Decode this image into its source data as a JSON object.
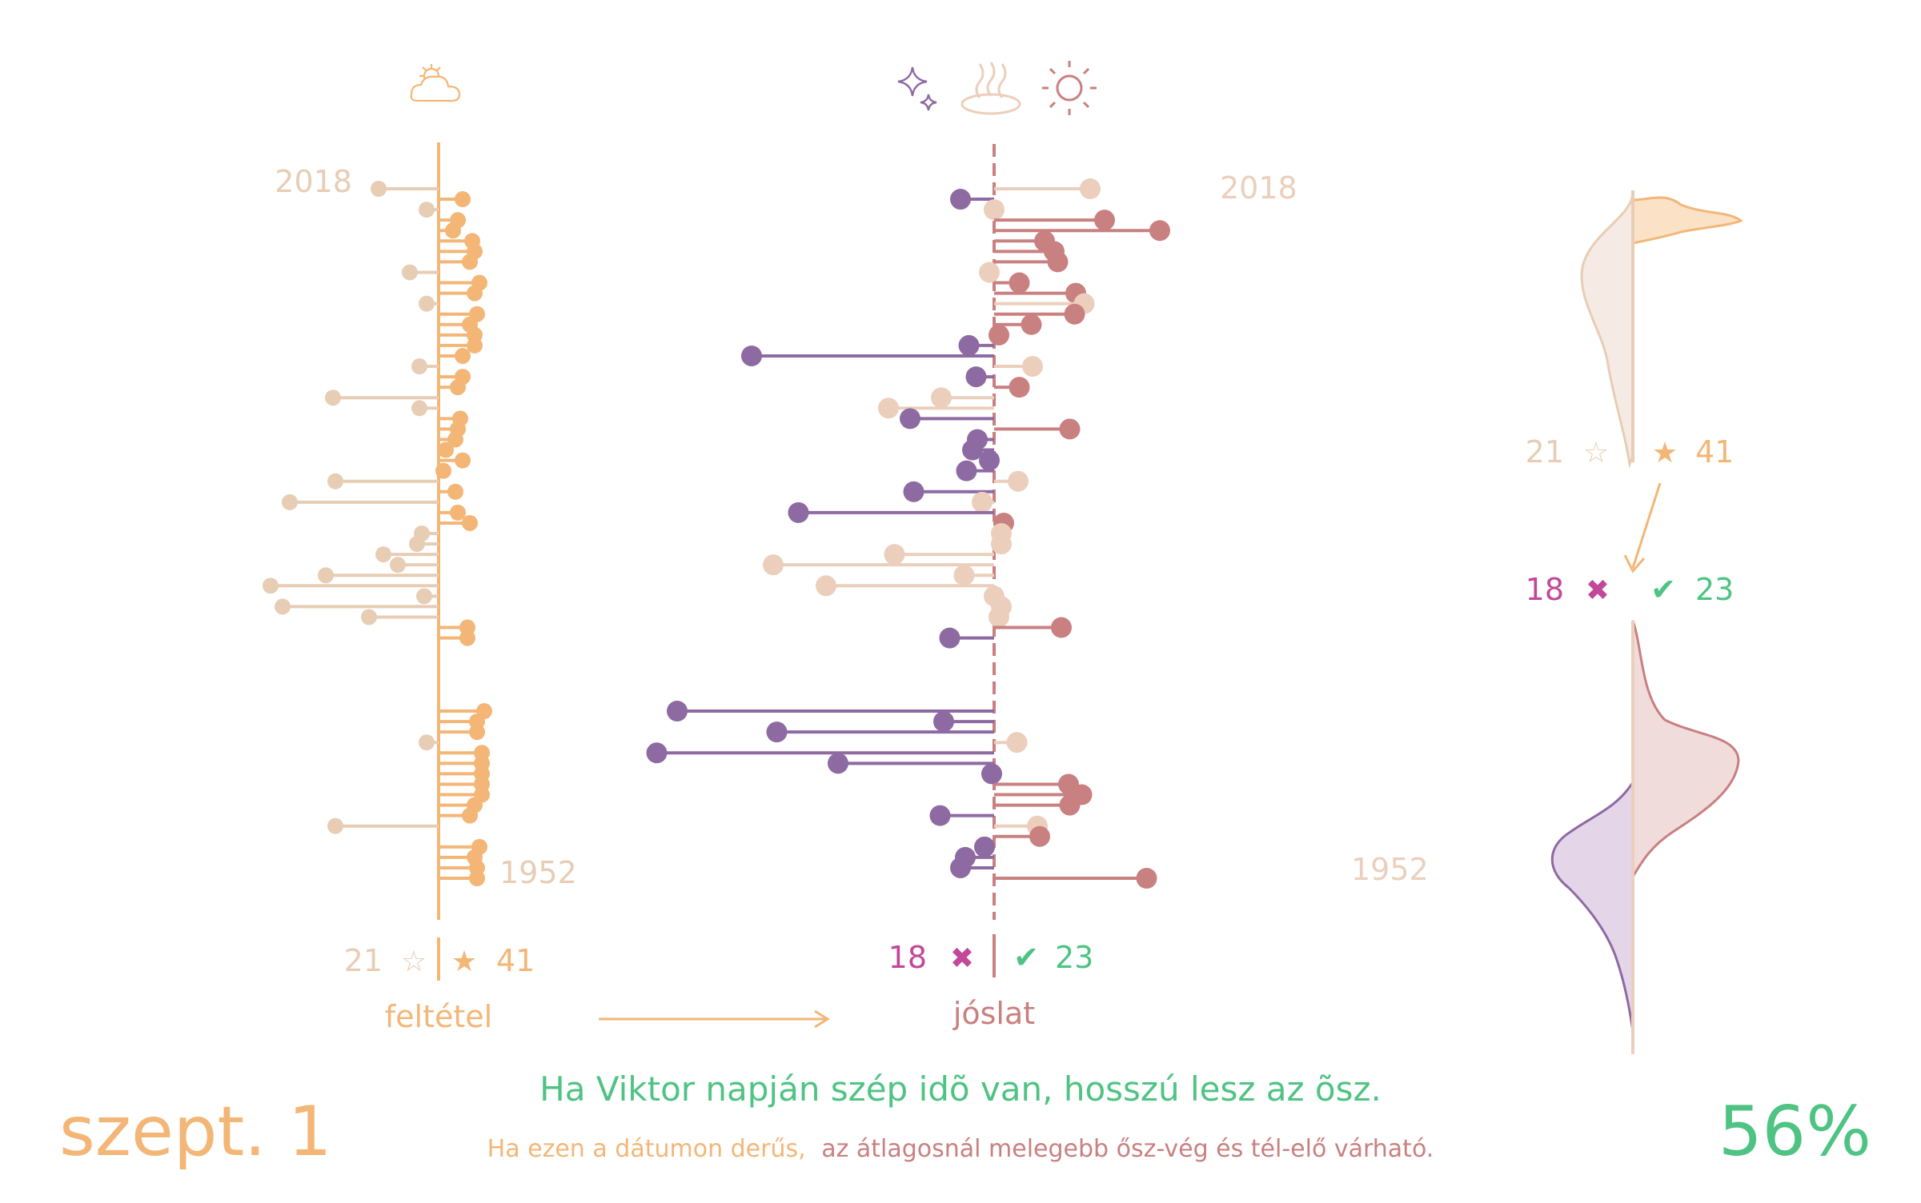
{
  "colors": {
    "condition_yes": "#F3B677",
    "condition_no": "#E8CDB5",
    "prediction_hit": "#C98080",
    "prediction_miss": "#8E6AA3",
    "prediction_neutral": "#EBCFBC",
    "correct": "#4FC383",
    "wrong": "#C2489A"
  },
  "icons": {
    "condition": "partly-sunny-icon",
    "prediction": [
      "sparkles-icon",
      "hot-spring-icon",
      "sun-icon"
    ]
  },
  "left_panel": {
    "label": "feltétel",
    "top_year": "2018",
    "bottom_year": "1952",
    "count_no": "21",
    "count_yes": "41",
    "star_empty": "☆",
    "star_full": "★"
  },
  "middle_panel": {
    "label": "jóslat",
    "top_year": "2018",
    "bottom_year": "1952",
    "count_wrong": "18",
    "count_right": "23",
    "cross": "✖",
    "check": "✔"
  },
  "right_panel": {
    "count_no": "21",
    "count_yes": "41",
    "star_empty": "☆",
    "star_full": "★",
    "count_wrong": "18",
    "count_right": "23",
    "cross": "✖",
    "check": "✔"
  },
  "footer": {
    "date": "szept. 1",
    "saying": "Ha Viktor napján szép idõ van, hosszú lesz az õsz.",
    "explanation_part1": "Ha ezen a dátumon derűs,",
    "explanation_part2": "az átlagosnál melegebb ősz-vég és tél-elő várható.",
    "percent": "56%"
  },
  "chart_data": [
    {
      "type": "lollipop",
      "name": "feltétel",
      "years_range": [
        1952,
        2018
      ],
      "x": [
        2018,
        2017,
        2016,
        2015,
        2014,
        2013,
        2012,
        2011,
        2010,
        2009,
        2008,
        2007,
        2006,
        2005,
        2004,
        2003,
        2002,
        2001,
        2000,
        1999,
        1998,
        1997,
        1996,
        1995,
        1994,
        1993,
        1992,
        1991,
        1990,
        1989,
        1988,
        1987,
        1986,
        1985,
        1984,
        1983,
        1982,
        1981,
        1980,
        1979,
        1978,
        1977,
        1976,
        1975,
        1974,
        1973,
        1972,
        1971,
        1970,
        1969,
        1968,
        1967,
        1966,
        1965,
        1964,
        1963,
        1962,
        1961,
        1960,
        1959,
        1958,
        1957,
        1956,
        1955,
        1954,
        1953,
        1952
      ],
      "values": [
        -2.5,
        1.0,
        -0.5,
        0.8,
        0.6,
        1.4,
        1.5,
        1.3,
        -1.2,
        1.7,
        1.5,
        -0.5,
        1.6,
        1.3,
        1.5,
        1.5,
        1.0,
        -0.8,
        1.0,
        0.8,
        -4.4,
        -0.8,
        0.9,
        0.8,
        0.7,
        0.3,
        1.0,
        0.2,
        -4.3,
        0.7,
        -6.2,
        0.8,
        1.3,
        -0.7,
        -0.9,
        -2.3,
        -1.7,
        -4.7,
        -7.0,
        -0.6,
        -6.5,
        -2.9,
        1.2,
        1.2,
        null,
        null,
        null,
        null,
        null,
        null,
        1.9,
        1.6,
        1.6,
        -0.5,
        1.8,
        1.8,
        1.8,
        1.8,
        1.8,
        1.5,
        1.3,
        -4.3,
        null,
        1.7,
        1.5,
        1.6,
        1.6
      ],
      "legend": [
        "☆ 21",
        "★ 41"
      ]
    },
    {
      "type": "lollipop",
      "name": "jóslat",
      "years_range": [
        1952,
        2018
      ],
      "x": [
        2018,
        2017,
        2016,
        2015,
        2014,
        2013,
        2012,
        2011,
        2010,
        2009,
        2008,
        2007,
        2006,
        2005,
        2004,
        2003,
        2002,
        2001,
        2000,
        1999,
        1998,
        1997,
        1996,
        1995,
        1994,
        1993,
        1992,
        1991,
        1990,
        1989,
        1988,
        1987,
        1986,
        1985,
        1984,
        1983,
        1982,
        1981,
        1980,
        1979,
        1978,
        1977,
        1976,
        1975,
        1974,
        1973,
        1972,
        1971,
        1970,
        1969,
        1968,
        1967,
        1966,
        1965,
        1964,
        1963,
        1962,
        1961,
        1960,
        1959,
        1958,
        1957,
        1956,
        1955,
        1954,
        1953,
        1952
      ],
      "values": [
        8.0,
        -2.8,
        0.0,
        9.2,
        13.8,
        4.2,
        5.0,
        5.3,
        -0.4,
        2.1,
        6.8,
        7.5,
        6.7,
        3.1,
        0.4,
        -2.1,
        -20.2,
        3.2,
        -1.5,
        2.1,
        -4.4,
        -8.8,
        -7.0,
        6.3,
        -1.4,
        -1.8,
        -0.4,
        -2.3,
        2.0,
        -6.7,
        -1.0,
        -16.3,
        0.8,
        0.6,
        0.6,
        -8.3,
        -18.4,
        -2.5,
        -14.0,
        0.0,
        0.6,
        0.4,
        5.6,
        -3.7,
        null,
        null,
        null,
        null,
        null,
        null,
        -26.4,
        -4.2,
        -18.1,
        1.9,
        -28.1,
        -13.0,
        -0.2,
        6.2,
        7.3,
        6.3,
        -4.5,
        3.6,
        3.8,
        -0.8,
        -2.4,
        -2.8,
        12.7
      ],
      "legend": [
        "✖ 18",
        "✔ 23"
      ]
    },
    {
      "type": "area",
      "name": "feltétel eloszlás",
      "legend": [
        "21 ☆",
        "★ 41"
      ]
    },
    {
      "type": "area",
      "name": "jóslat eloszlás",
      "legend": [
        "18 ✖",
        "✔ 23"
      ]
    }
  ]
}
